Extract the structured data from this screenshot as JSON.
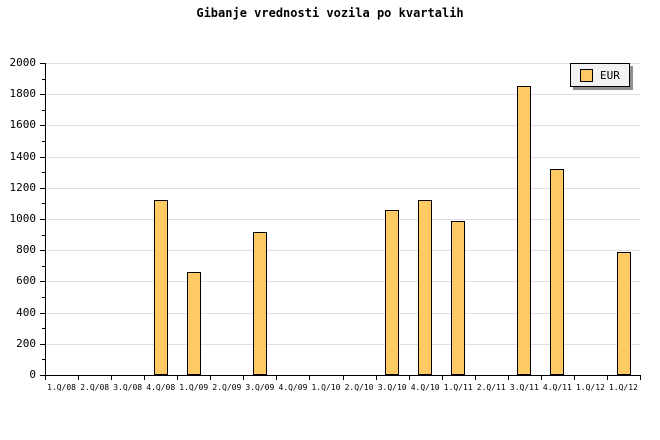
{
  "title": "Gibanje vrednosti vozila po kvartalih",
  "legend": {
    "label": "EUR"
  },
  "colors": {
    "bar_fill": "#FFC966",
    "bar_border": "#000000",
    "grid": "#E0E0E0",
    "axis": "#000000",
    "text": "#000000",
    "legend_bg": "#F2F2F2",
    "legend_shadow": "#909090",
    "background": "#FFFFFF"
  },
  "chart_data": {
    "type": "bar",
    "title": "Gibanje vrednosti vozila po kvartalih",
    "categories": [
      "1.Q/08",
      "2.Q/08",
      "3.Q/08",
      "4.Q/08",
      "1.Q/09",
      "2.Q/09",
      "3.Q/09",
      "4.Q/09",
      "1.Q/10",
      "2.Q/10",
      "3.Q/10",
      "4.Q/10",
      "1.Q/11",
      "2.Q/11",
      "3.Q/11",
      "4.Q/11",
      "1.Q/12",
      "1.Q/12"
    ],
    "series": [
      {
        "name": "EUR",
        "values": [
          null,
          null,
          null,
          1120,
          660,
          null,
          920,
          null,
          null,
          null,
          1060,
          1120,
          990,
          null,
          1850,
          1320,
          null,
          790
        ]
      }
    ],
    "xlabel": "",
    "ylabel": "",
    "ylim": [
      0,
      2000
    ],
    "ytick_step": 200,
    "y_minor_tick_step": 100,
    "grid": true,
    "legend_position": "top-right"
  }
}
